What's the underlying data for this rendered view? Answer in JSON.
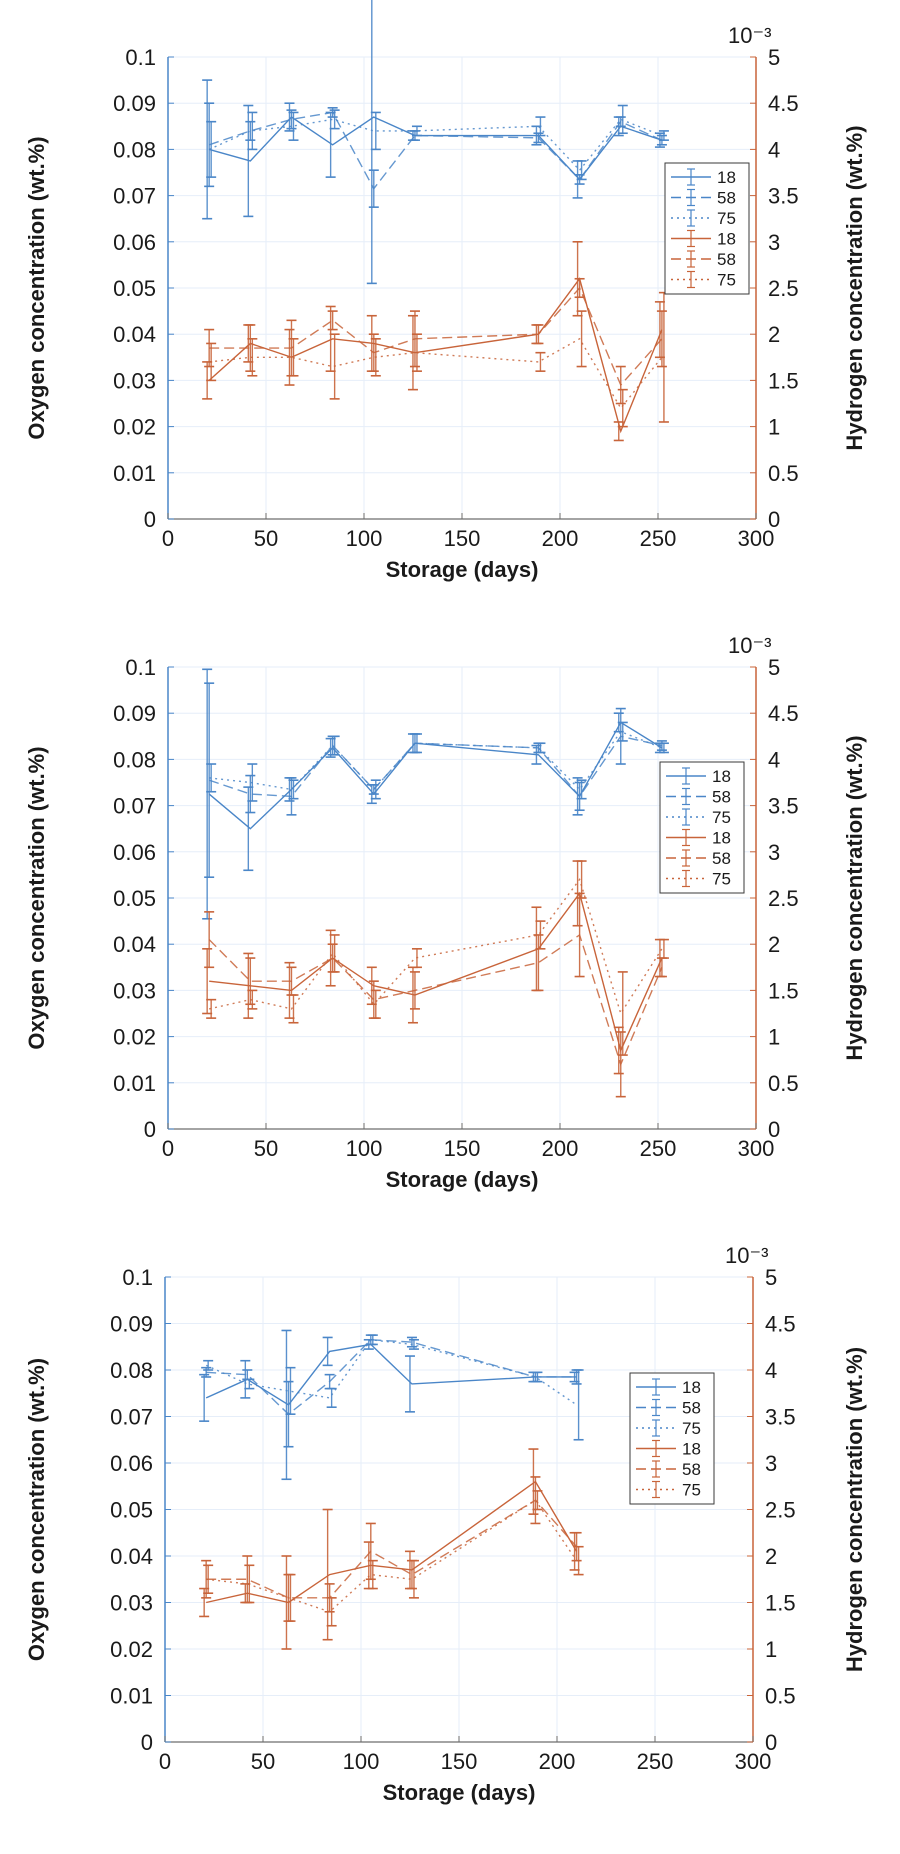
{
  "colors": {
    "oxygen": "#4a86c8",
    "hydrogen": "#c8643a",
    "axis_text": "#1a1a1a",
    "grid": "#e6eef9"
  },
  "chart_data": [
    {
      "type": "line",
      "xlabel": "Storage (days)",
      "ylabel": "Oxygen concentration (wt.%)",
      "y2label": "Hydrogen concentration (wt.%)",
      "y2_exponent": "10⁻³",
      "xlim": [
        0,
        300
      ],
      "ylim": [
        0,
        0.1
      ],
      "y2lim": [
        0,
        5
      ],
      "xticks": [
        "0",
        "50",
        "100",
        "150",
        "200",
        "250",
        "300"
      ],
      "yticks": [
        "0",
        "0.01",
        "0.02",
        "0.03",
        "0.04",
        "0.05",
        "0.06",
        "0.07",
        "0.08",
        "0.09",
        "0.1"
      ],
      "y2ticks": [
        "0",
        "0.5",
        "1",
        "1.5",
        "2",
        "2.5",
        "3",
        "3.5",
        "4",
        "4.5",
        "5"
      ],
      "grid": true,
      "legend": "right, middle",
      "x": [
        21,
        42,
        63,
        84,
        105,
        126,
        189,
        210,
        231,
        252
      ],
      "series": [
        {
          "name": "18",
          "axis": "left",
          "gas": "oxygen",
          "dash": "solid",
          "values": [
            0.08,
            0.0775,
            0.087,
            0.081,
            0.087,
            0.083,
            0.083,
            0.0735,
            0.085,
            0.082
          ],
          "err": [
            0.015,
            0.012,
            0.003,
            0.007,
            0.036,
            0.001,
            0.002,
            0.004,
            0.002,
            0.0015
          ]
        },
        {
          "name": "58",
          "axis": "left",
          "gas": "oxygen",
          "dash": "dashed",
          "values": [
            0.081,
            0.084,
            0.0865,
            0.088,
            0.0715,
            0.083,
            0.0825,
            0.0735,
            0.086,
            0.082
          ],
          "err": [
            0.009,
            0.002,
            0.002,
            0.001,
            0.004,
            0.001,
            0.001,
            0.001,
            0.001,
            0.001
          ]
        },
        {
          "name": "75",
          "axis": "left",
          "gas": "oxygen",
          "dash": "dotted",
          "values": [
            0.08,
            0.084,
            0.085,
            0.0865,
            0.084,
            0.084,
            0.085,
            0.0755,
            0.0865,
            0.083
          ],
          "err": [
            0.006,
            0.004,
            0.003,
            0.002,
            0.004,
            0.001,
            0.002,
            0.002,
            0.003,
            0.001
          ]
        },
        {
          "name": "18",
          "axis": "right",
          "gas": "hydrogen",
          "dash": "solid",
          "values": [
            1.5,
            1.9,
            1.75,
            1.95,
            1.9,
            1.8,
            2.0,
            2.6,
            0.95,
            2.05
          ],
          "err": [
            0.2,
            0.2,
            0.3,
            0.35,
            0.3,
            0.4,
            0.1,
            0.4,
            0.1,
            0.3
          ]
        },
        {
          "name": "58",
          "axis": "right",
          "gas": "hydrogen",
          "dash": "dashed",
          "values": [
            1.85,
            1.85,
            1.85,
            2.15,
            1.8,
            1.95,
            2.0,
            2.5,
            1.45,
            1.95
          ],
          "err": [
            0.2,
            0.25,
            0.3,
            0.1,
            0.2,
            0.3,
            0.1,
            0.1,
            0.2,
            0.3
          ]
        },
        {
          "name": "75",
          "axis": "right",
          "gas": "hydrogen",
          "dash": "dotted",
          "values": [
            1.7,
            1.75,
            1.75,
            1.65,
            1.75,
            1.8,
            1.7,
            1.95,
            1.2,
            1.75
          ],
          "err": [
            0.2,
            0.2,
            0.2,
            0.35,
            0.2,
            0.2,
            0.1,
            0.3,
            0.2,
            0.7
          ]
        }
      ]
    },
    {
      "type": "line",
      "xlabel": "Storage (days)",
      "ylabel": "Oxygen concentration (wt.%)",
      "y2label": "Hydrogen concentration (wt.%)",
      "y2_exponent": "10⁻³",
      "xlim": [
        0,
        300
      ],
      "ylim": [
        0,
        0.1
      ],
      "y2lim": [
        0,
        5
      ],
      "xticks": [
        "0",
        "50",
        "100",
        "150",
        "200",
        "250",
        "300"
      ],
      "yticks": [
        "0",
        "0.01",
        "0.02",
        "0.03",
        "0.04",
        "0.05",
        "0.06",
        "0.07",
        "0.08",
        "0.09",
        "0.1"
      ],
      "y2ticks": [
        "0",
        "0.5",
        "1",
        "1.5",
        "2",
        "2.5",
        "3",
        "3.5",
        "4",
        "4.5",
        "5"
      ],
      "grid": true,
      "legend": "right, middle",
      "x": [
        21,
        42,
        63,
        84,
        105,
        126,
        189,
        210,
        231,
        252
      ],
      "series": [
        {
          "name": "18",
          "axis": "left",
          "gas": "oxygen",
          "dash": "solid",
          "values": [
            0.0725,
            0.065,
            0.0735,
            0.0825,
            0.0725,
            0.0835,
            0.081,
            0.072,
            0.088,
            0.0825
          ],
          "err": [
            0.027,
            0.009,
            0.0025,
            0.002,
            0.002,
            0.002,
            0.002,
            0.004,
            0.002,
            0.001
          ]
        },
        {
          "name": "58",
          "axis": "left",
          "gas": "oxygen",
          "dash": "dashed",
          "values": [
            0.0755,
            0.0725,
            0.072,
            0.083,
            0.0735,
            0.0835,
            0.0825,
            0.072,
            0.085,
            0.083
          ],
          "err": [
            0.021,
            0.004,
            0.004,
            0.002,
            0.001,
            0.002,
            0.001,
            0.003,
            0.006,
            0.001
          ]
        },
        {
          "name": "75",
          "axis": "left",
          "gas": "oxygen",
          "dash": "dotted",
          "values": [
            0.076,
            0.075,
            0.0735,
            0.083,
            0.0735,
            0.0835,
            0.0825,
            0.0735,
            0.086,
            0.0825
          ],
          "err": [
            0.003,
            0.004,
            0.002,
            0.002,
            0.002,
            0.002,
            0.001,
            0.002,
            0.002,
            0.001
          ]
        },
        {
          "name": "18",
          "axis": "right",
          "gas": "hydrogen",
          "dash": "solid",
          "values": [
            1.6,
            1.55,
            1.5,
            1.85,
            1.55,
            1.45,
            1.95,
            2.55,
            0.85,
            1.85
          ],
          "err": [
            0.35,
            0.35,
            0.3,
            0.3,
            0.2,
            0.3,
            0.45,
            0.35,
            0.25,
            0.2
          ]
        },
        {
          "name": "58",
          "axis": "right",
          "gas": "hydrogen",
          "dash": "dashed",
          "values": [
            2.05,
            1.6,
            1.6,
            1.85,
            1.4,
            1.5,
            1.8,
            2.1,
            0.7,
            1.75
          ],
          "err": [
            0.3,
            0.25,
            0.15,
            0.15,
            0.2,
            0.2,
            0.3,
            0.45,
            0.35,
            0.1
          ]
        },
        {
          "name": "75",
          "axis": "right",
          "gas": "hydrogen",
          "dash": "dotted",
          "values": [
            1.3,
            1.4,
            1.3,
            1.9,
            1.35,
            1.85,
            2.1,
            2.7,
            1.25,
            1.95
          ],
          "err": [
            0.1,
            0.1,
            0.15,
            0.2,
            0.15,
            0.1,
            0.15,
            0.2,
            0.45,
            0.1
          ]
        }
      ]
    },
    {
      "type": "line",
      "xlabel": "Storage (days)",
      "ylabel": "Oxygen concentration (wt.%)",
      "y2label": "Hydrogen concentration (wt.%)",
      "y2_exponent": "10⁻³",
      "xlim": [
        0,
        300
      ],
      "ylim": [
        0,
        0.1
      ],
      "y2lim": [
        0,
        5
      ],
      "xticks": [
        "0",
        "50",
        "100",
        "150",
        "200",
        "250",
        "300"
      ],
      "yticks": [
        "0",
        "0.01",
        "0.02",
        "0.03",
        "0.04",
        "0.05",
        "0.06",
        "0.07",
        "0.08",
        "0.09",
        "0.1"
      ],
      "y2ticks": [
        "0",
        "0.5",
        "1",
        "1.5",
        "2",
        "2.5",
        "3",
        "3.5",
        "4",
        "4.5",
        "5"
      ],
      "grid": true,
      "legend": "right, upper-middle",
      "x": [
        21,
        42,
        63,
        84,
        105,
        126,
        189,
        210
      ],
      "series": [
        {
          "name": "18",
          "axis": "left",
          "gas": "oxygen",
          "dash": "solid",
          "values": [
            0.074,
            0.078,
            0.0725,
            0.084,
            0.0855,
            0.077,
            0.0785,
            0.0785
          ],
          "err": [
            0.005,
            0.004,
            0.016,
            0.003,
            0.001,
            0.006,
            0.001,
            0.001
          ]
        },
        {
          "name": "58",
          "axis": "left",
          "gas": "oxygen",
          "dash": "dashed",
          "values": [
            0.0795,
            0.079,
            0.0705,
            0.0775,
            0.0865,
            0.086,
            0.0785,
            0.0785
          ],
          "err": [
            0.001,
            0.001,
            0.007,
            0.0015,
            0.001,
            0.001,
            0.001,
            0.0015
          ]
        },
        {
          "name": "75",
          "axis": "left",
          "gas": "oxygen",
          "dash": "dotted",
          "values": [
            0.081,
            0.077,
            0.0755,
            0.074,
            0.0865,
            0.0855,
            0.0785,
            0.0725
          ],
          "err": [
            0.001,
            0.001,
            0.005,
            0.002,
            0.001,
            0.001,
            0.001,
            0.0075
          ]
        },
        {
          "name": "18",
          "axis": "right",
          "gas": "hydrogen",
          "dash": "solid",
          "values": [
            1.5,
            1.6,
            1.5,
            1.8,
            1.9,
            1.85,
            2.8,
            2.05
          ],
          "err": [
            0.15,
            0.1,
            0.5,
            0.7,
            0.25,
            0.2,
            0.35,
            0.2
          ]
        },
        {
          "name": "58",
          "axis": "right",
          "gas": "hydrogen",
          "dash": "dashed",
          "values": [
            1.75,
            1.75,
            1.55,
            1.55,
            2.05,
            1.8,
            2.6,
            2.1
          ],
          "err": [
            0.2,
            0.25,
            0.25,
            0.15,
            0.3,
            0.15,
            0.25,
            0.15
          ]
        },
        {
          "name": "75",
          "axis": "right",
          "gas": "hydrogen",
          "dash": "dotted",
          "values": [
            1.75,
            1.7,
            1.55,
            1.4,
            1.8,
            1.75,
            2.6,
            1.95
          ],
          "err": [
            0.15,
            0.2,
            0.25,
            0.15,
            0.15,
            0.2,
            0.1,
            0.15
          ]
        }
      ]
    }
  ]
}
